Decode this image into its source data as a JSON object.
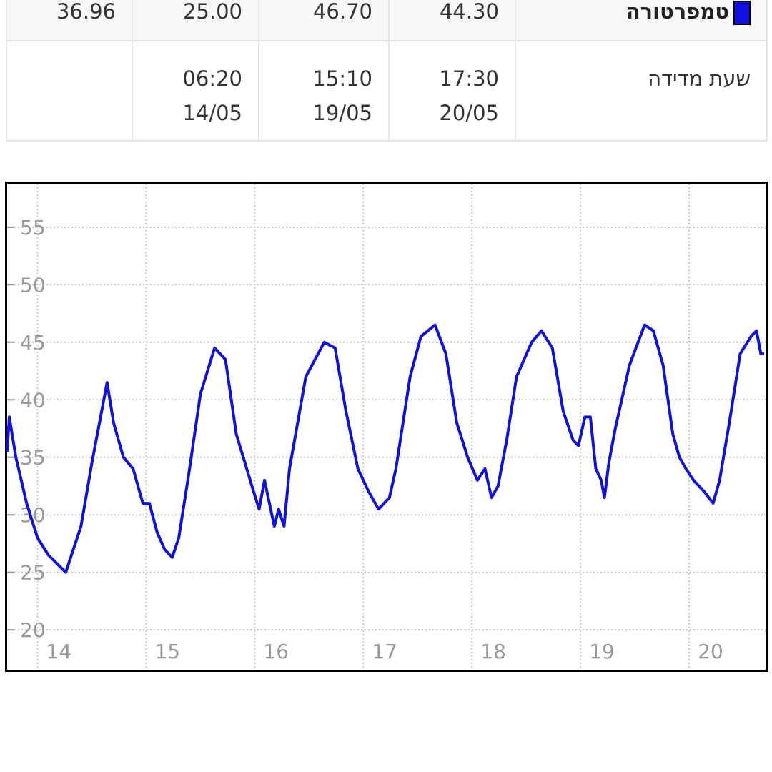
{
  "table": {
    "rows": [
      {
        "cells": [
          "36.96",
          "25.00",
          "46.70",
          "44.30"
        ],
        "label": "טמפרטורה"
      },
      {
        "cells": [
          {
            "time": "06:20",
            "date": "14/05"
          },
          {
            "time": "15:10",
            "date": "19/05"
          },
          {
            "time": "17:30",
            "date": "20/05"
          }
        ],
        "label": "שעת מדידה"
      }
    ]
  },
  "chart_data": {
    "type": "line",
    "color": "#1010e0",
    "x": [
      13.72,
      13.74,
      13.8,
      13.9,
      14.0,
      14.1,
      14.26,
      14.4,
      14.5,
      14.58,
      14.64,
      14.7,
      14.79,
      14.88,
      14.97,
      15.03,
      15.1,
      15.17,
      15.24,
      15.3,
      15.4,
      15.5,
      15.63,
      15.73,
      15.83,
      15.99,
      16.04,
      16.09,
      16.18,
      16.22,
      16.27,
      16.32,
      16.47,
      16.64,
      16.74,
      16.84,
      16.95,
      17.05,
      17.14,
      17.24,
      17.3,
      17.43,
      17.53,
      17.66,
      17.76,
      17.86,
      17.96,
      18.05,
      18.12,
      18.18,
      18.24,
      18.32,
      18.41,
      18.55,
      18.64,
      18.74,
      18.84,
      18.93,
      18.98,
      19.04,
      19.09,
      19.14,
      19.19,
      19.22,
      19.26,
      19.32,
      19.45,
      19.59,
      19.67,
      19.76,
      19.85,
      19.91,
      19.97,
      20.04,
      20.14,
      20.22,
      20.28,
      20.37,
      20.47,
      20.57,
      20.62,
      20.66,
      20.69
    ],
    "values": [
      35.5,
      38.5,
      35,
      31,
      28,
      26.5,
      25,
      29,
      34.5,
      38.5,
      41.5,
      38,
      35,
      34,
      31,
      31,
      28.5,
      27,
      26.3,
      28,
      34,
      40.5,
      44.5,
      43.5,
      37,
      32,
      30.5,
      33,
      29,
      30.5,
      29,
      34,
      42,
      45,
      44.5,
      39,
      34,
      32,
      30.5,
      31.5,
      34,
      42,
      45.5,
      46.5,
      44,
      38,
      35,
      33,
      34,
      31.5,
      32.5,
      36.5,
      42,
      45,
      46,
      44.5,
      39,
      36.5,
      36,
      38.5,
      38.5,
      34,
      33,
      31.5,
      34.5,
      37.5,
      43,
      46.5,
      46,
      43,
      37,
      35,
      34,
      33,
      32,
      31,
      33,
      38,
      44,
      45.5,
      46,
      44,
      44
    ],
    "xlim": [
      13.72,
      20.71
    ],
    "ylim": [
      16.53,
      58.78
    ],
    "xticks": [
      14,
      15,
      16,
      17,
      18,
      19,
      20
    ],
    "yticks": [
      20,
      25,
      30,
      35,
      40,
      45,
      50,
      55
    ],
    "grid": true
  }
}
